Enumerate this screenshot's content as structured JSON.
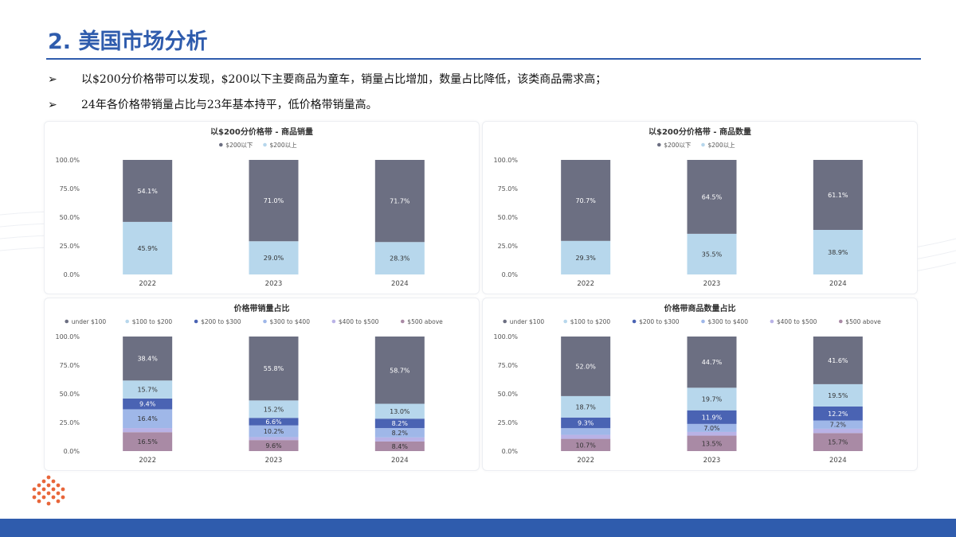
{
  "header": {
    "title": "2. 美国市场分析",
    "bullets": [
      "以$200分价格带可以发现，$200以下主要商品为童车，销量占比增加，数量占比降低，该类商品需求高；",
      "24年各价格带销量占比与23年基本持平，低价格带销量高。"
    ],
    "bullet_marker": "➢"
  },
  "colors": {
    "accent": "#2f5cad",
    "under100": "#6c6f82",
    "s100_200": "#b7d7ec",
    "s200_300": "#4a63b3",
    "s300_400": "#9fb7e8",
    "s400_500": "#b9b2e6",
    "s500_above": "#a98aa5",
    "below200": "#6c6f82",
    "above200": "#b7d7ec"
  },
  "chart_data": [
    {
      "type": "bar",
      "stacked": true,
      "title": "以$200分价格带 - 商品销量",
      "categories": [
        "2022",
        "2023",
        "2024"
      ],
      "ylim": [
        0,
        100
      ],
      "yticks": [
        "0.0%",
        "25.0%",
        "50.0%",
        "75.0%",
        "100.0%"
      ],
      "legend_position": "top",
      "series": [
        {
          "name": "$200以下",
          "color_key": "below200",
          "values": [
            54.1,
            71.0,
            71.7
          ],
          "labels": [
            "54.1%",
            "71.0%",
            "71.7%"
          ]
        },
        {
          "name": "$200以上",
          "color_key": "above200",
          "values": [
            45.9,
            29.0,
            28.3
          ],
          "labels": [
            "45.9%",
            "29.0%",
            "28.3%"
          ]
        }
      ]
    },
    {
      "type": "bar",
      "stacked": true,
      "title": "以$200分价格带 - 商品数量",
      "categories": [
        "2022",
        "2023",
        "2024"
      ],
      "ylim": [
        0,
        100
      ],
      "yticks": [
        "0.0%",
        "25.0%",
        "50.0%",
        "75.0%",
        "100.0%"
      ],
      "legend_position": "top",
      "series": [
        {
          "name": "$200以下",
          "color_key": "below200",
          "values": [
            70.7,
            64.5,
            61.1
          ],
          "labels": [
            "70.7%",
            "64.5%",
            "61.1%"
          ]
        },
        {
          "name": "$200以上",
          "color_key": "above200",
          "values": [
            29.3,
            35.5,
            38.9
          ],
          "labels": [
            "29.3%",
            "35.5%",
            "38.9%"
          ]
        }
      ]
    },
    {
      "type": "bar",
      "stacked": true,
      "title": "价格带销量占比",
      "categories": [
        "2022",
        "2023",
        "2024"
      ],
      "ylim": [
        0,
        100
      ],
      "yticks": [
        "0.0%",
        "25.0%",
        "50.0%",
        "75.0%",
        "100.0%"
      ],
      "legend_position": "top",
      "series": [
        {
          "name": "under $100",
          "color_key": "under100",
          "values": [
            38.4,
            55.8,
            58.7
          ],
          "labels": [
            "38.4%",
            "55.8%",
            "58.7%"
          ]
        },
        {
          "name": "$100 to $200",
          "color_key": "s100_200",
          "values": [
            15.7,
            15.2,
            13.0
          ],
          "labels": [
            "15.7%",
            "15.2%",
            "13.0%"
          ]
        },
        {
          "name": "$200 to $300",
          "color_key": "s200_300",
          "values": [
            9.4,
            6.6,
            8.2
          ],
          "labels": [
            "9.4%",
            "6.6%",
            "8.2%"
          ]
        },
        {
          "name": "$300 to $400",
          "color_key": "s300_400",
          "values": [
            16.4,
            10.2,
            8.2
          ],
          "labels": [
            "16.4%",
            "10.2%",
            "8.2%"
          ]
        },
        {
          "name": "$400 to $500",
          "color_key": "s400_500",
          "values": [
            3.6,
            2.6,
            3.5
          ],
          "labels": [
            "",
            "",
            ""
          ]
        },
        {
          "name": "$500 above",
          "color_key": "s500_above",
          "values": [
            16.5,
            9.6,
            8.4
          ],
          "labels": [
            "16.5%",
            "9.6%",
            "8.4%"
          ]
        }
      ]
    },
    {
      "type": "bar",
      "stacked": true,
      "title": "价格带商品数量占比",
      "categories": [
        "2022",
        "2023",
        "2024"
      ],
      "ylim": [
        0,
        100
      ],
      "yticks": [
        "0.0%",
        "25.0%",
        "50.0%",
        "75.0%",
        "100.0%"
      ],
      "legend_position": "top",
      "series": [
        {
          "name": "under $100",
          "color_key": "under100",
          "values": [
            52.0,
            44.7,
            41.6
          ],
          "labels": [
            "52.0%",
            "44.7%",
            "41.6%"
          ]
        },
        {
          "name": "$100 to $200",
          "color_key": "s100_200",
          "values": [
            18.7,
            19.7,
            19.5
          ],
          "labels": [
            "18.7%",
            "19.7%",
            "19.5%"
          ]
        },
        {
          "name": "$200 to $300",
          "color_key": "s200_300",
          "values": [
            9.3,
            11.9,
            12.2
          ],
          "labels": [
            "9.3%",
            "11.9%",
            "12.2%"
          ]
        },
        {
          "name": "$300 to $400",
          "color_key": "s300_400",
          "values": [
            5.8,
            7.0,
            7.2
          ],
          "labels": [
            "",
            "7.0%",
            "7.2%"
          ]
        },
        {
          "name": "$400 to $500",
          "color_key": "s400_500",
          "values": [
            3.5,
            3.2,
            3.8
          ],
          "labels": [
            "",
            "",
            ""
          ]
        },
        {
          "name": "$500 above",
          "color_key": "s500_above",
          "values": [
            10.7,
            13.5,
            15.7
          ],
          "labels": [
            "10.7%",
            "13.5%",
            "15.7%"
          ]
        }
      ]
    }
  ]
}
